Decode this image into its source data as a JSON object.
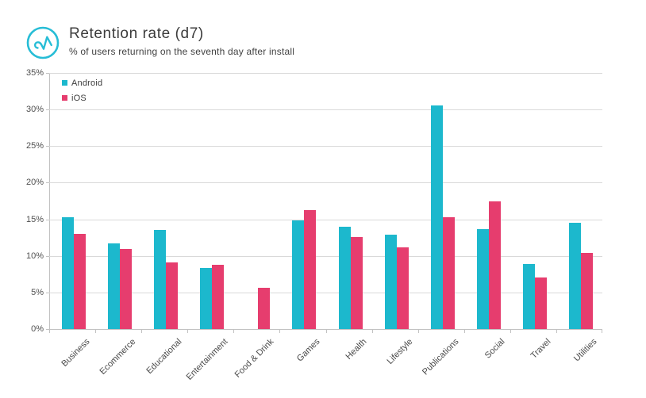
{
  "header": {
    "title": "Retention rate (d7)",
    "subtitle": "% of users returning on the seventh day after install",
    "logo_icon": "appsflyer-logo-icon"
  },
  "chart_data": {
    "type": "bar",
    "title": "Retention rate (d7)",
    "subtitle": "% of users returning on the seventh day after install",
    "categories": [
      "Business",
      "Ecommerce",
      "Educational",
      "Entertainment",
      "Food & Drink",
      "Games",
      "Health",
      "Lifestyle",
      "Publications",
      "Social",
      "Travel",
      "Utilities"
    ],
    "series": [
      {
        "name": "Android",
        "color": "#1cb8cd",
        "values": [
          15.3,
          11.7,
          13.5,
          8.3,
          0,
          14.8,
          14.0,
          12.9,
          30.6,
          13.7,
          8.9,
          14.5
        ]
      },
      {
        "name": "iOS",
        "color": "#e63d6e",
        "values": [
          13.0,
          11.0,
          9.1,
          8.8,
          5.6,
          16.3,
          12.6,
          11.2,
          15.3,
          17.5,
          7.0,
          10.4
        ]
      }
    ],
    "xlabel": "",
    "ylabel": "",
    "ylim": [
      0,
      35
    ],
    "ytick_step": 5,
    "yticks": [
      "0%",
      "5%",
      "10%",
      "15%",
      "20%",
      "25%",
      "30%",
      "35%"
    ],
    "grid": true,
    "legend_position": "top-left-inside"
  },
  "colors": {
    "android": "#1cb8cd",
    "ios": "#e63d6e",
    "accent": "#27bdd6",
    "grid": "#d9d9d9",
    "axis": "#c2c2c2",
    "text": "#3c3c3c",
    "tick_text": "#4f4f4f"
  }
}
